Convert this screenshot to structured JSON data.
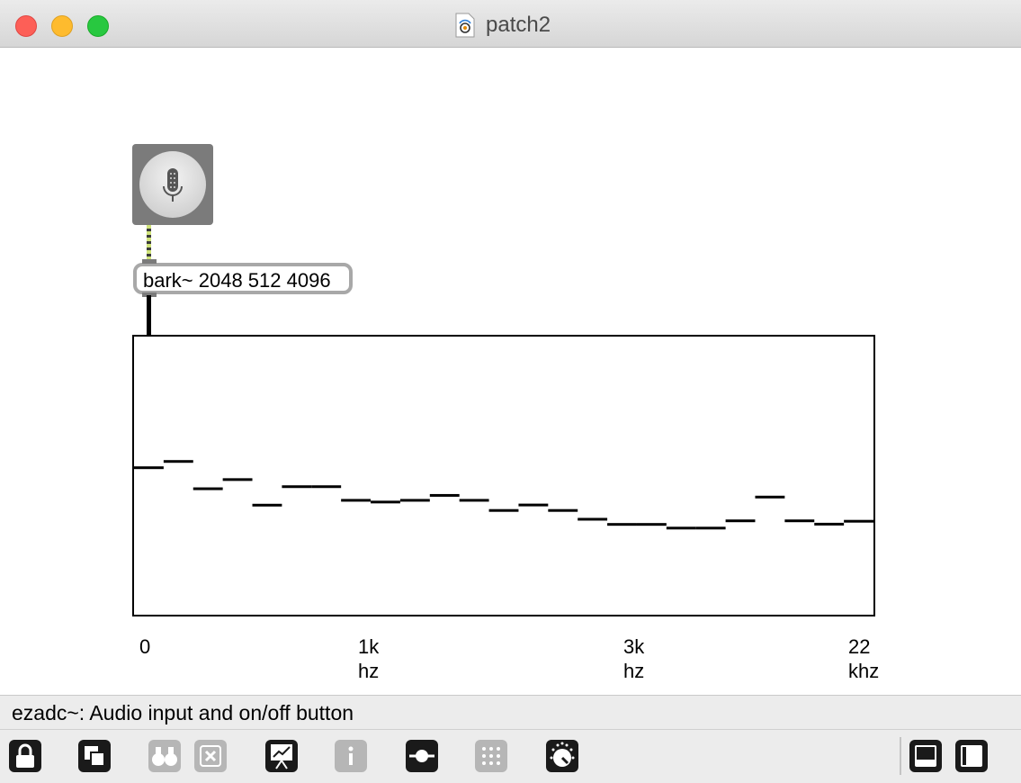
{
  "window": {
    "title": "patch2"
  },
  "patch": {
    "ezadc": {
      "icon": "microphone-icon"
    },
    "object_text": "bark~ 2048 512 4096",
    "display": {
      "levels": [
        0.4715,
        0.4489,
        0.5471,
        0.5141,
        0.6061,
        0.5396,
        0.5396,
        0.5887,
        0.5949,
        0.5887,
        0.571,
        0.5887,
        0.6252,
        0.6055,
        0.6252,
        0.6568,
        0.6753,
        0.6753,
        0.6886,
        0.6886,
        0.6625,
        0.577,
        0.6625,
        0.6744,
        0.664
      ]
    },
    "axis_labels": [
      {
        "line1": "0",
        "line2": ""
      },
      {
        "line1": "1k",
        "line2": "hz"
      },
      {
        "line1": "3k",
        "line2": "hz"
      },
      {
        "line1": "22",
        "line2": "khz"
      }
    ]
  },
  "status": {
    "text": "ezadc~: Audio input and on/off button"
  },
  "toolbar": {
    "buttons": [
      {
        "icon": "lock-icon",
        "enabled": true
      },
      {
        "icon": "new-window-icon",
        "enabled": true
      },
      {
        "icon": "binoculars-icon",
        "enabled": false
      },
      {
        "icon": "close-x-icon",
        "enabled": false
      },
      {
        "icon": "presentation-icon",
        "enabled": true
      },
      {
        "icon": "info-icon",
        "enabled": false
      },
      {
        "icon": "patchcord-icon",
        "enabled": true
      },
      {
        "icon": "grid-icon",
        "enabled": false
      },
      {
        "icon": "dial-icon",
        "enabled": true
      },
      {
        "icon": "bottom-panel-icon",
        "enabled": true
      },
      {
        "icon": "sidebar-icon",
        "enabled": true
      }
    ]
  }
}
